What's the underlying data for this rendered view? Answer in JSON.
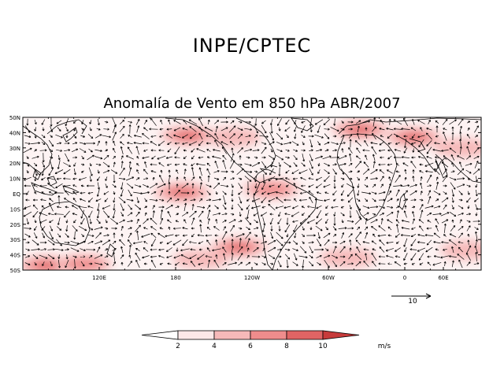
{
  "header": {
    "title": "INPE/CPTEC",
    "subtitle": "Anomalía de Vento em 850 hPa ABR/2007"
  },
  "map": {
    "lat_labels": [
      "50N",
      "40N",
      "30N",
      "20N",
      "10N",
      "EQ",
      "10S",
      "20S",
      "30S",
      "40S",
      "50S"
    ],
    "lon_labels": [
      "120E",
      "180",
      "120W",
      "60W",
      "0",
      "60E"
    ],
    "lon_range": [
      60,
      420
    ],
    "lat_range": [
      -50,
      50
    ],
    "colors": {
      "land_outline": "#000000",
      "vector": "#000000",
      "frame": "#000000"
    }
  },
  "reference_vector": {
    "label": "10",
    "units": "m/s"
  },
  "colorbar": {
    "ticks": [
      "2",
      "4",
      "6",
      "8",
      "10"
    ],
    "units": "m/s",
    "colors": [
      "#ffffff",
      "#fce8e8",
      "#f6b9b9",
      "#ef8c8c",
      "#e06464",
      "#c73b3b"
    ]
  },
  "anomaly_hotspots": [
    {
      "lon": 190,
      "lat": 38,
      "level": 4
    },
    {
      "lon": 225,
      "lat": 37,
      "level": 2
    },
    {
      "lon": 185,
      "lat": 1,
      "level": 4
    },
    {
      "lon": 255,
      "lat": 3,
      "level": 3
    },
    {
      "lon": 325,
      "lat": 42,
      "level": 4
    },
    {
      "lon": 367,
      "lat": 37,
      "level": 4
    },
    {
      "lon": 405,
      "lat": 30,
      "level": 2
    },
    {
      "lon": 78,
      "lat": -47,
      "level": 4
    },
    {
      "lon": 108,
      "lat": -46,
      "level": 3
    },
    {
      "lon": 200,
      "lat": -43,
      "level": 2
    },
    {
      "lon": 230,
      "lat": -35,
      "level": 4
    },
    {
      "lon": 315,
      "lat": -42,
      "level": 2
    },
    {
      "lon": 410,
      "lat": -37,
      "level": 2
    }
  ]
}
